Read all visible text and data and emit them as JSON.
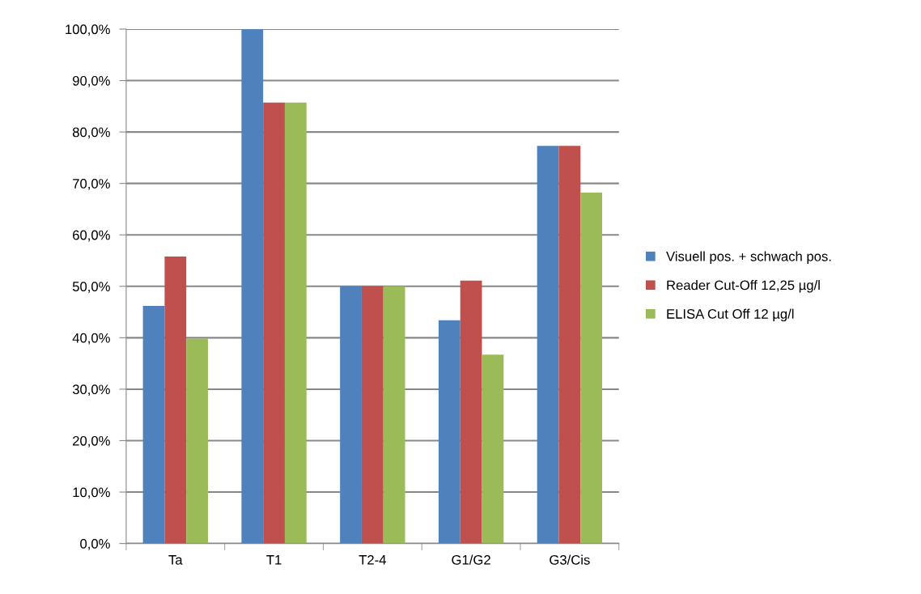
{
  "chart_data": {
    "type": "bar",
    "categories": [
      "Ta",
      "T1",
      "T2-4",
      "G1/G2",
      "G3/Cis"
    ],
    "series": [
      {
        "name": "Visuell pos. + schwach pos.",
        "color": "#4f81bd",
        "values": [
          46.2,
          100,
          50,
          43.4,
          77.3
        ]
      },
      {
        "name": "Reader Cut-Off 12,25 µg/l",
        "color": "#c0504d",
        "values": [
          55.8,
          85.7,
          50,
          51.1,
          77.3
        ]
      },
      {
        "name": "ELISA Cut Off 12 µg/l",
        "color": "#9bbb59",
        "values": [
          39.8,
          85.7,
          50,
          36.7,
          68.2
        ]
      }
    ],
    "ylim": [
      0,
      100
    ],
    "yticks": [
      {
        "value": 0,
        "label": "0,0%"
      },
      {
        "value": 10,
        "label": "10,0%"
      },
      {
        "value": 20,
        "label": "20,0%"
      },
      {
        "value": 30,
        "label": "30,0%"
      },
      {
        "value": 40,
        "label": "40,0%"
      },
      {
        "value": 50,
        "label": "50,0%"
      },
      {
        "value": 60,
        "label": "60,0%"
      },
      {
        "value": 70,
        "label": "70,0%"
      },
      {
        "value": 80,
        "label": "80,0%"
      },
      {
        "value": 90,
        "label": "90,0%"
      },
      {
        "value": 100,
        "label": "100,0%"
      }
    ],
    "grid": "y",
    "legend": "right"
  }
}
